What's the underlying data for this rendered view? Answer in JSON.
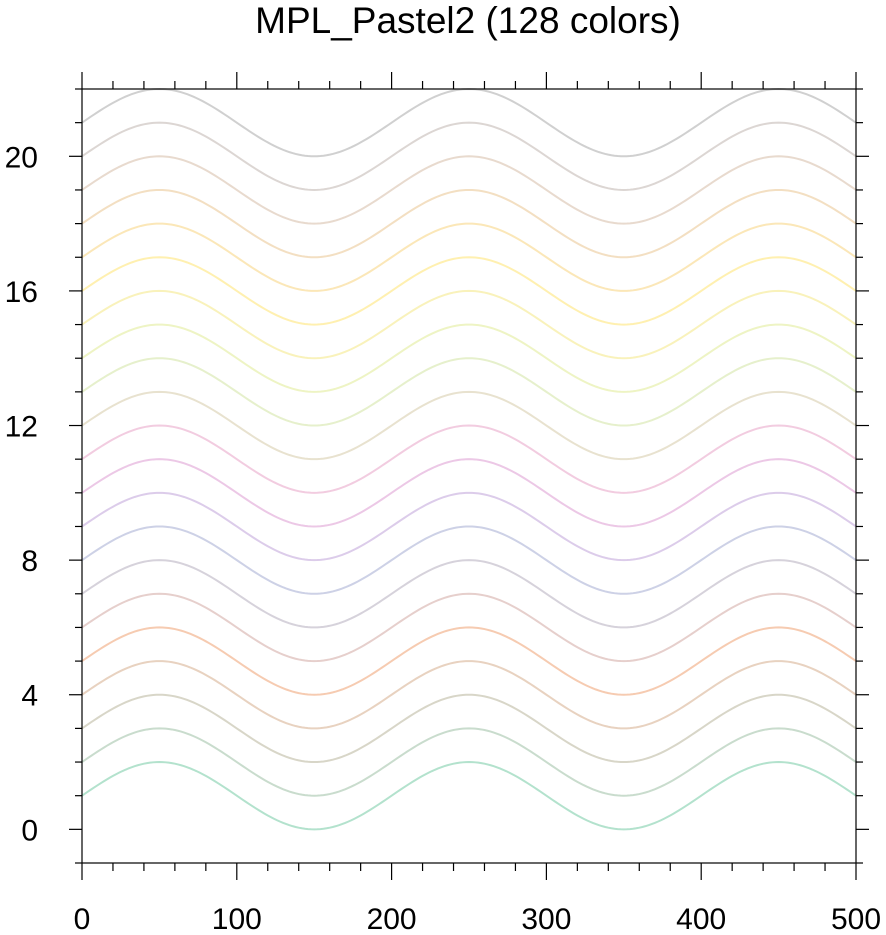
{
  "chart_data": {
    "type": "line",
    "title": "MPL_Pastel2 (128 colors)",
    "xlabel": "",
    "ylabel": "",
    "xlim": [
      0,
      500
    ],
    "ylim": [
      -1,
      22
    ],
    "x_ticks": [
      0,
      100,
      200,
      300,
      400,
      500
    ],
    "y_ticks": [
      0,
      4,
      8,
      12,
      16,
      20
    ],
    "x_tick_labels": [
      "0",
      "100",
      "200",
      "300",
      "400",
      "500"
    ],
    "y_tick_labels": [
      "0",
      "4",
      "8",
      "12",
      "16",
      "20"
    ],
    "x_minor_step": 20,
    "y_minor_step": 1,
    "grid": false,
    "curve_function": "y = offset + 1 + sin(2*pi*(x - 0)/200 ) shape: amplitude 1, period 200, peaks at x=50,250,450",
    "series": [
      {
        "offset": 0,
        "color": "#b3e2cd"
      },
      {
        "offset": 1,
        "color": "#c9dccd"
      },
      {
        "offset": 2,
        "color": "#d8d6c8"
      },
      {
        "offset": 3,
        "color": "#e8d2c0"
      },
      {
        "offset": 4,
        "color": "#f6cbb1"
      },
      {
        "offset": 5,
        "color": "#e6cfcc"
      },
      {
        "offset": 6,
        "color": "#d6d2db"
      },
      {
        "offset": 7,
        "color": "#cdd1e6"
      },
      {
        "offset": 8,
        "color": "#dcccea"
      },
      {
        "offset": 9,
        "color": "#ecc8e6"
      },
      {
        "offset": 10,
        "color": "#f2cce0"
      },
      {
        "offset": 11,
        "color": "#e8e2cf"
      },
      {
        "offset": 12,
        "color": "#e6f0cc"
      },
      {
        "offset": 13,
        "color": "#eef4c4"
      },
      {
        "offset": 14,
        "color": "#f9f2bb"
      },
      {
        "offset": 15,
        "color": "#fff0b0"
      },
      {
        "offset": 16,
        "color": "#fbe7b8"
      },
      {
        "offset": 17,
        "color": "#f3dfc2"
      },
      {
        "offset": 18,
        "color": "#e8dace"
      },
      {
        "offset": 19,
        "color": "#dcd6d3"
      },
      {
        "offset": 20,
        "color": "#d0d0d0"
      }
    ]
  }
}
